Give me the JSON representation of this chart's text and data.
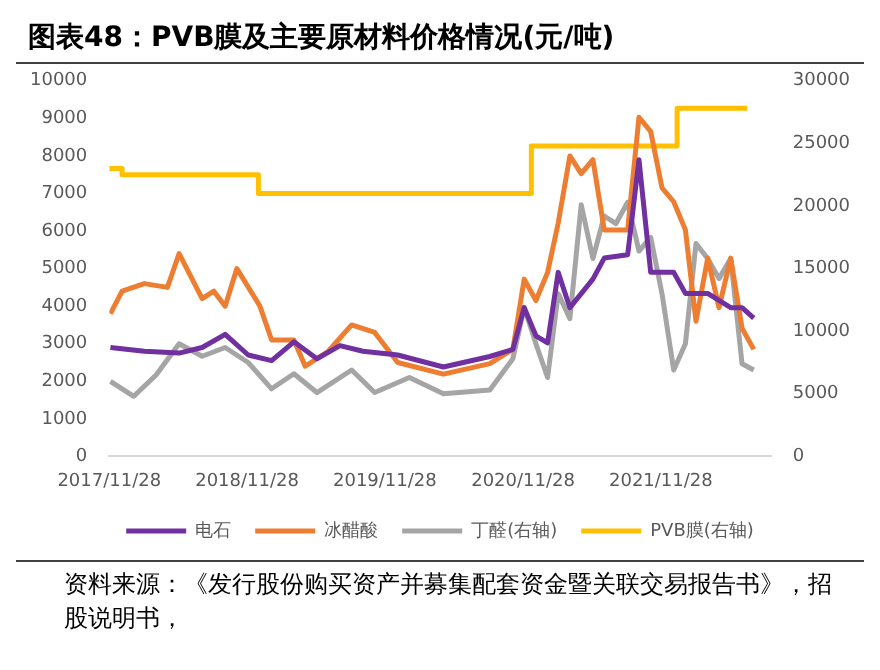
{
  "chart_data": {
    "type": "line",
    "title": "图表48：PVB膜及主要原材料价格情况(元/吨)",
    "annotations": [
      "资料来源：《发行股份购买资产并募集配套资金暨关联交易报告书》，招股说明书，"
    ],
    "xlim": [
      "2017-11-28",
      "2022-09-15"
    ],
    "xticks": [
      {
        "value": "2017-11-28",
        "label": "2017/11/28"
      },
      {
        "value": "2018-11-28",
        "label": "2018/11/28"
      },
      {
        "value": "2019-11-28",
        "label": "2019/11/28"
      },
      {
        "value": "2020-11-28",
        "label": "2020/11/28"
      },
      {
        "value": "2021-11-28",
        "label": "2021/11/28"
      }
    ],
    "ylim": [
      0,
      10000
    ],
    "yticks": [
      0,
      1000,
      2000,
      3000,
      4000,
      5000,
      6000,
      7000,
      8000,
      9000,
      10000
    ],
    "y2lim": [
      0,
      30000
    ],
    "y2ticks": [
      0,
      5000,
      10000,
      15000,
      20000,
      25000,
      30000
    ],
    "grid": false,
    "legend": "bottom",
    "marker": "none",
    "series": [
      {
        "name": "电石",
        "color": "#7030a0",
        "x": [
          "2017-12",
          "2018-03",
          "2018-06",
          "2018-08",
          "2018-10",
          "2018-12",
          "2019-02",
          "2019-04",
          "2019-06",
          "2019-08",
          "2019-10",
          "2020-01",
          "2020-05",
          "2020-09",
          "2020-11",
          "2020-12",
          "2021-01",
          "2021-02",
          "2021-03",
          "2021-04",
          "2021-06",
          "2021-07",
          "2021-09",
          "2021-10",
          "2021-11",
          "2022-01",
          "2022-02",
          "2022-04",
          "2022-06",
          "2022-07",
          "2022-08"
        ],
        "values": [
          2900,
          2800,
          2750,
          2900,
          3250,
          2700,
          2550,
          3050,
          2600,
          2950,
          2800,
          2700,
          2380,
          2660,
          2850,
          3960,
          3210,
          3020,
          4900,
          3960,
          4720,
          5280,
          5370,
          7900,
          4900,
          4900,
          4340,
          4340,
          3960,
          3960,
          3680
        ]
      },
      {
        "name": "冰醋酸",
        "color": "#ed7d31",
        "x": [
          "2017-12",
          "2018-01",
          "2018-03",
          "2018-05",
          "2018-06",
          "2018-08",
          "2018-09",
          "2018-10",
          "2018-11",
          "2019-01",
          "2019-02",
          "2019-04",
          "2019-05",
          "2019-07",
          "2019-09",
          "2019-11",
          "2020-01",
          "2020-05",
          "2020-09",
          "2020-11",
          "2020-12",
          "2021-01",
          "2021-02",
          "2021-03",
          "2021-04",
          "2021-05",
          "2021-06",
          "2021-07",
          "2021-09",
          "2021-10",
          "2021-11",
          "2021-12",
          "2022-01",
          "2022-02",
          "2022-03",
          "2022-04",
          "2022-05",
          "2022-06",
          "2022-07",
          "2022-08"
        ],
        "values": [
          3800,
          4400,
          4600,
          4500,
          5400,
          4200,
          4400,
          4000,
          5000,
          4000,
          3100,
          3100,
          2400,
          2800,
          3500,
          3300,
          2500,
          2190,
          2470,
          2850,
          4720,
          4150,
          4900,
          6210,
          8000,
          7530,
          7900,
          6030,
          6030,
          9030,
          8650,
          7150,
          6780,
          6030,
          3600,
          5280,
          3960,
          5280,
          3410,
          2850
        ]
      },
      {
        "name": "丁醛(右轴)",
        "color": "#a5a5a5",
        "axis": "y2",
        "x": [
          "2017-12",
          "2018-02",
          "2018-04",
          "2018-06",
          "2018-08",
          "2018-10",
          "2018-12",
          "2019-02",
          "2019-04",
          "2019-06",
          "2019-09",
          "2019-11",
          "2020-02",
          "2020-05",
          "2020-09",
          "2020-11",
          "2020-12",
          "2021-01",
          "2021-02",
          "2021-03",
          "2021-04",
          "2021-05",
          "2021-06",
          "2021-07",
          "2021-08",
          "2021-09",
          "2021-10",
          "2021-11",
          "2021-12",
          "2022-01",
          "2022-02",
          "2022-03",
          "2022-04",
          "2022-05",
          "2022-06",
          "2022-07",
          "2022-08"
        ],
        "values": [
          6000,
          4800,
          6500,
          9000,
          8000,
          8700,
          7500,
          5400,
          6600,
          5100,
          6900,
          5100,
          6300,
          5000,
          5300,
          7800,
          11900,
          9000,
          6300,
          13000,
          11000,
          20100,
          15800,
          19200,
          18600,
          20300,
          16400,
          17500,
          13000,
          6900,
          9000,
          17000,
          15800,
          14200,
          15800,
          7400,
          6900
        ]
      },
      {
        "name": "PVB膜(右轴)",
        "color": "#ffc000",
        "type": "step",
        "axis": "y2",
        "x": [
          "2017-11-28",
          "2018-01-01",
          "2018-12-28",
          "2020-12-20",
          "2022-01-10",
          "2022-07-15"
        ],
        "values": [
          23000,
          22500,
          21000,
          24800,
          27800,
          27800
        ]
      }
    ]
  }
}
